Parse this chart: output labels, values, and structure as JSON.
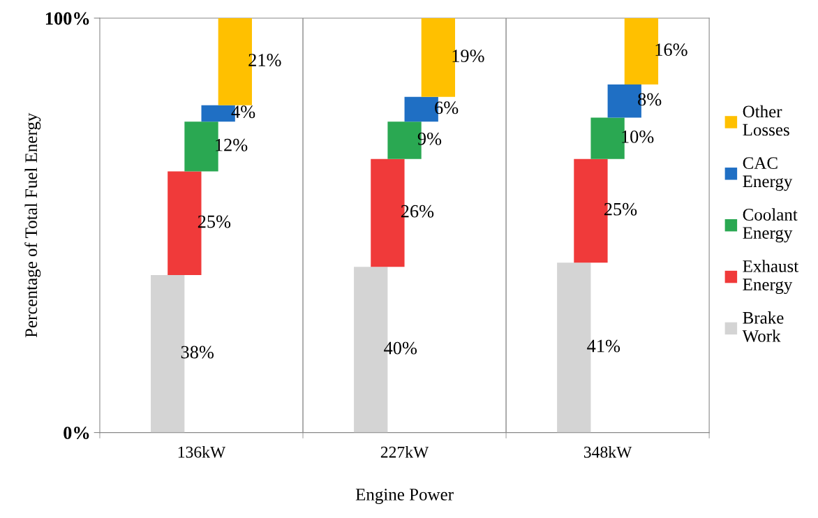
{
  "chart_data": {
    "type": "bar",
    "xlabel": "Engine Power",
    "ylabel": "Percentage of Total Fuel Energy",
    "categories": [
      "136kW",
      "227kW",
      "348kW"
    ],
    "series": [
      {
        "name": "Brake Work",
        "color": "#d4d4d4",
        "values": [
          38,
          40,
          41
        ],
        "base": [
          0,
          0,
          0
        ],
        "value_labels": [
          "38%",
          "40%",
          "41%"
        ]
      },
      {
        "name": "Exhaust Energy",
        "color": "#f03a3a",
        "values": [
          25,
          26,
          25
        ],
        "base": [
          38,
          40,
          41
        ],
        "value_labels": [
          "25%",
          "26%",
          "25%"
        ]
      },
      {
        "name": "Coolant Energy",
        "color": "#2aa852",
        "values": [
          12,
          9,
          10
        ],
        "base": [
          63,
          66,
          66
        ],
        "value_labels": [
          "12%",
          "9%",
          "10%"
        ]
      },
      {
        "name": "CAC Energy",
        "color": "#1f6fc4",
        "values": [
          4,
          6,
          8
        ],
        "base": [
          75,
          75,
          76
        ],
        "value_labels": [
          "4%",
          "6%",
          "8%"
        ]
      },
      {
        "name": "Other Losses",
        "color": "#ffc000",
        "values": [
          21,
          19,
          16
        ],
        "base": [
          79,
          81,
          84
        ],
        "value_labels": [
          "21%",
          "19%",
          "16%"
        ]
      }
    ],
    "ylim": [
      0,
      100
    ],
    "yticks": [
      {
        "value": 0,
        "label": "0%"
      },
      {
        "value": 100,
        "label": "100%"
      }
    ],
    "grid": "x",
    "legend": "right"
  }
}
